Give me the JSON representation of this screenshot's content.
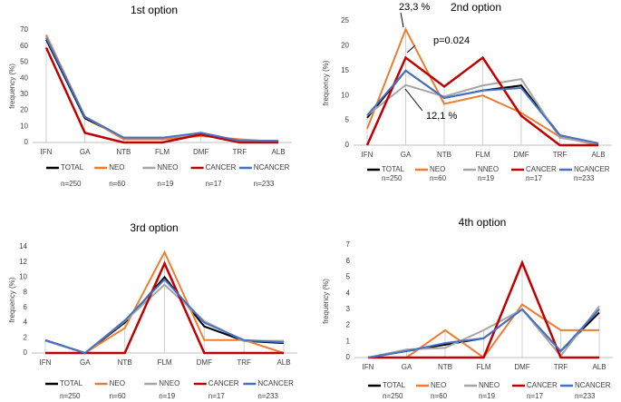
{
  "chart_data": [
    {
      "type": "line",
      "title": "1st option",
      "y_label": "frequency (%)",
      "categories": [
        "IFN",
        "GA",
        "NTB",
        "FLM",
        "DMF",
        "TRF",
        "ALB"
      ],
      "ylim": [
        0,
        70
      ],
      "yticks": [
        0,
        10,
        20,
        30,
        40,
        50,
        60,
        70
      ],
      "series": [
        {
          "name": "TOTAL",
          "color": "#000000",
          "values": [
            64,
            15,
            3,
            2.5,
            6,
            1,
            1
          ]
        },
        {
          "name": "NEO",
          "color": "#ed7d31",
          "values": [
            67,
            16,
            2,
            2,
            4,
            2,
            0.5
          ]
        },
        {
          "name": "NNEO",
          "color": "#a5a5a5",
          "values": [
            66,
            16,
            3,
            3,
            5,
            1,
            1
          ]
        },
        {
          "name": "CANCER",
          "color": "#c00000",
          "values": [
            59,
            6,
            0,
            0,
            5,
            0,
            0
          ]
        },
        {
          "name": "NCANCER",
          "color": "#4472c4",
          "values": [
            65,
            16,
            3,
            3,
            6,
            1,
            1
          ]
        }
      ],
      "sample_sizes": [
        "n=250",
        "n=60",
        "n=19",
        "n=17",
        "n=233"
      ]
    },
    {
      "type": "line",
      "title": "2nd option",
      "y_label": "frequency (%)",
      "categories": [
        "IFN",
        "GA",
        "NTB",
        "FLM",
        "DMF",
        "TRF",
        "ALB"
      ],
      "ylim": [
        0,
        25
      ],
      "yticks": [
        0,
        5,
        10,
        15,
        20,
        25
      ],
      "series": [
        {
          "name": "TOTAL",
          "color": "#000000",
          "values": [
            5.5,
            15,
            9.5,
            11,
            12,
            2,
            0.3
          ]
        },
        {
          "name": "NEO",
          "color": "#ed7d31",
          "values": [
            3.3,
            23.3,
            8.3,
            10,
            6.5,
            1.7,
            0
          ]
        },
        {
          "name": "NNEO",
          "color": "#a5a5a5",
          "values": [
            6,
            12.1,
            9.8,
            12,
            13.3,
            1.5,
            0.3
          ]
        },
        {
          "name": "CANCER",
          "color": "#c00000",
          "values": [
            0,
            17.6,
            11.8,
            17.6,
            5.9,
            0,
            0
          ]
        },
        {
          "name": "NCANCER",
          "color": "#4472c4",
          "values": [
            6,
            15,
            9.5,
            11,
            11.5,
            2,
            0.4
          ]
        }
      ],
      "sample_sizes": [
        "n=250",
        "n=60",
        "n=19",
        "n=17",
        "n=233"
      ],
      "annotations": [
        "23,3 %",
        "p=0.024",
        "12,1 %"
      ]
    },
    {
      "type": "line",
      "title": "3rd option",
      "y_label": "frequency (%)",
      "categories": [
        "IFN",
        "GA",
        "NTB",
        "FLM",
        "DMF",
        "TRF",
        "ALB"
      ],
      "ylim": [
        0,
        14
      ],
      "yticks": [
        0,
        2,
        4,
        6,
        8,
        10,
        12,
        14
      ],
      "series": [
        {
          "name": "TOTAL",
          "color": "#000000",
          "values": [
            1.7,
            0,
            4,
            10,
            3.5,
            1.6,
            1.3
          ]
        },
        {
          "name": "NEO",
          "color": "#ed7d31",
          "values": [
            1.7,
            0,
            3.3,
            13.3,
            1.7,
            1.7,
            0
          ]
        },
        {
          "name": "NNEO",
          "color": "#a5a5a5",
          "values": [
            1.6,
            0,
            4.2,
            9,
            4.2,
            1.6,
            1.6
          ]
        },
        {
          "name": "CANCER",
          "color": "#c00000",
          "values": [
            0,
            0,
            0,
            11.8,
            0,
            0,
            0
          ]
        },
        {
          "name": "NCANCER",
          "color": "#4472c4",
          "values": [
            1.7,
            0,
            4.3,
            9.7,
            4,
            1.7,
            1.4
          ]
        }
      ],
      "sample_sizes": [
        "n=250",
        "n=60",
        "n=19",
        "n=17",
        "n=233"
      ]
    },
    {
      "type": "line",
      "title": "4th option",
      "y_label": "frequency (%)",
      "categories": [
        "IFN",
        "GA",
        "NTB",
        "FLM",
        "DMF",
        "TRF",
        "ALB"
      ],
      "ylim": [
        0,
        7
      ],
      "yticks": [
        0,
        1,
        2,
        3,
        4,
        5,
        6,
        7
      ],
      "series": [
        {
          "name": "TOTAL",
          "color": "#000000",
          "values": [
            0,
            0.4,
            0.8,
            1.2,
            3,
            0.4,
            2.8
          ]
        },
        {
          "name": "NEO",
          "color": "#ed7d31",
          "values": [
            0,
            0,
            1.7,
            0,
            3.3,
            1.7,
            1.7
          ]
        },
        {
          "name": "NNEO",
          "color": "#a5a5a5",
          "values": [
            0,
            0.5,
            0.6,
            1.7,
            3,
            0.1,
            3.2
          ]
        },
        {
          "name": "CANCER",
          "color": "#c00000",
          "values": [
            0,
            0,
            0,
            0,
            5.9,
            0,
            0
          ]
        },
        {
          "name": "NCANCER",
          "color": "#4472c4",
          "values": [
            0,
            0.4,
            0.9,
            1.2,
            3,
            0.4,
            3
          ]
        }
      ],
      "sample_sizes": [
        "n=250",
        "n=60",
        "n=19",
        "n=17",
        "n=233"
      ]
    }
  ]
}
